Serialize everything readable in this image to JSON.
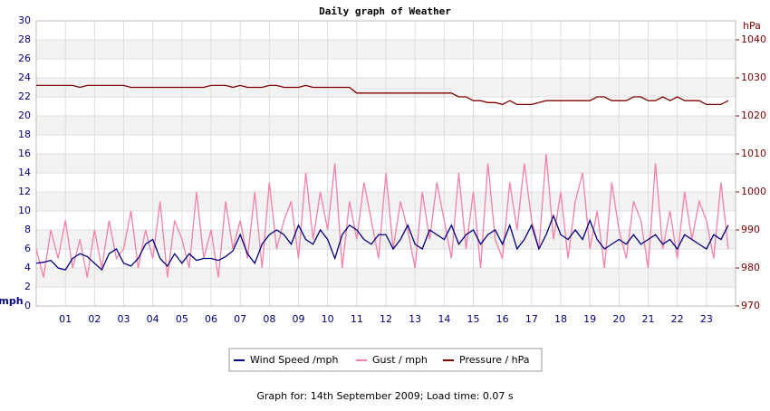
{
  "chart_data": {
    "type": "line",
    "title": "Daily graph of Weather",
    "y_label": "mph",
    "y2_label": "hPa",
    "footer": "Graph for: 14th September 2009; Load time: 0.07 s",
    "x": [
      0,
      0.25,
      0.5,
      0.75,
      1,
      1.25,
      1.5,
      1.75,
      2,
      2.25,
      2.5,
      2.75,
      3,
      3.25,
      3.5,
      3.75,
      4,
      4.25,
      4.5,
      4.75,
      5,
      5.25,
      5.5,
      5.75,
      6,
      6.25,
      6.5,
      6.75,
      7,
      7.25,
      7.5,
      7.75,
      8,
      8.25,
      8.5,
      8.75,
      9,
      9.25,
      9.5,
      9.75,
      10,
      10.25,
      10.5,
      10.75,
      11,
      11.25,
      11.5,
      11.75,
      12,
      12.25,
      12.5,
      12.75,
      13,
      13.25,
      13.5,
      13.75,
      14,
      14.25,
      14.5,
      14.75,
      15,
      15.25,
      15.5,
      15.75,
      16,
      16.25,
      16.5,
      16.75,
      17,
      17.25,
      17.5,
      17.75,
      18,
      18.25,
      18.5,
      18.75,
      19,
      19.25,
      19.5,
      19.75,
      20,
      20.25,
      20.5,
      20.75,
      21,
      21.25,
      21.5,
      21.75,
      22,
      22.25,
      22.5,
      22.75,
      23,
      23.25,
      23.5,
      23.75
    ],
    "series": [
      {
        "name": "Wind Speed /mph",
        "color": "#000080",
        "values": [
          4.5,
          4.6,
          4.8,
          4.0,
          3.8,
          5.0,
          5.5,
          5.2,
          4.5,
          3.8,
          5.5,
          6.0,
          4.5,
          4.2,
          5.0,
          6.5,
          7.0,
          5.0,
          4.2,
          5.5,
          4.5,
          5.5,
          4.8,
          5.0,
          5.0,
          4.8,
          5.2,
          5.8,
          7.5,
          5.5,
          4.5,
          6.5,
          7.5,
          8.0,
          7.5,
          6.5,
          8.5,
          7.0,
          6.5,
          8.0,
          7.0,
          5.0,
          7.5,
          8.5,
          8.0,
          7.0,
          6.5,
          7.5,
          7.5,
          6.0,
          7.0,
          8.5,
          6.5,
          6.0,
          8.0,
          7.5,
          7.0,
          8.5,
          6.5,
          7.5,
          8.0,
          6.5,
          7.5,
          8.0,
          6.5,
          8.5,
          6.0,
          7.0,
          8.5,
          6.0,
          7.5,
          9.5,
          7.5,
          7.0,
          8.0,
          7.0,
          9.0,
          7.0,
          6.0,
          6.5,
          7.0,
          6.5,
          7.5,
          6.5,
          7.0,
          7.5,
          6.5,
          7.0,
          6.0,
          7.5,
          7.0,
          6.5,
          6.0,
          7.5,
          7.0,
          8.5
        ]
      },
      {
        "name": "Gust / mph",
        "color": "#f77fa8",
        "values": [
          6,
          3,
          8,
          5,
          9,
          4,
          7,
          3,
          8,
          4,
          9,
          5,
          6,
          10,
          4,
          8,
          5,
          11,
          3,
          9,
          7,
          4,
          12,
          5,
          8,
          3,
          11,
          6,
          9,
          5,
          12,
          4,
          13,
          6,
          9,
          11,
          5,
          14,
          7,
          12,
          8,
          15,
          4,
          11,
          7,
          13,
          9,
          5,
          14,
          6,
          11,
          8,
          4,
          12,
          7,
          13,
          9,
          5,
          14,
          6,
          12,
          4,
          15,
          7,
          5,
          13,
          8,
          15,
          9,
          6,
          16,
          7,
          12,
          5,
          11,
          14,
          6,
          10,
          4,
          13,
          8,
          5,
          11,
          9,
          4,
          15,
          6,
          10,
          5,
          12,
          7,
          11,
          9,
          5,
          13,
          6
        ]
      },
      {
        "name": "Pressure / hPa",
        "color": "#800000",
        "axis": "y2",
        "values": [
          1028,
          1028,
          1028,
          1028,
          1028,
          1028,
          1027.5,
          1028,
          1028,
          1028,
          1028,
          1028,
          1028,
          1027.5,
          1027.5,
          1027.5,
          1027.5,
          1027.5,
          1027.5,
          1027.5,
          1027.5,
          1027.5,
          1027.5,
          1027.5,
          1028,
          1028,
          1028,
          1027.5,
          1028,
          1027.5,
          1027.5,
          1027.5,
          1028,
          1028,
          1027.5,
          1027.5,
          1027.5,
          1028,
          1027.5,
          1027.5,
          1027.5,
          1027.5,
          1027.5,
          1027.5,
          1026,
          1026,
          1026,
          1026,
          1026,
          1026,
          1026,
          1026,
          1026,
          1026,
          1026,
          1026,
          1026,
          1026,
          1025,
          1025,
          1024,
          1024,
          1023.5,
          1023.5,
          1023,
          1024,
          1023,
          1023,
          1023,
          1023.5,
          1024,
          1024,
          1024,
          1024,
          1024,
          1024,
          1024,
          1025,
          1025,
          1024,
          1024,
          1024,
          1025,
          1025,
          1024,
          1024,
          1025,
          1024,
          1025,
          1024,
          1024,
          1024,
          1023,
          1023,
          1023,
          1024
        ]
      }
    ],
    "xlim": [
      0,
      24
    ],
    "xticks": [
      {
        "value": 1,
        "label": "01"
      },
      {
        "value": 2,
        "label": "02"
      },
      {
        "value": 3,
        "label": "03"
      },
      {
        "value": 4,
        "label": "04"
      },
      {
        "value": 5,
        "label": "05"
      },
      {
        "value": 6,
        "label": "06"
      },
      {
        "value": 7,
        "label": "07"
      },
      {
        "value": 8,
        "label": "08"
      },
      {
        "value": 9,
        "label": "09"
      },
      10,
      11,
      12,
      13,
      14,
      15,
      16,
      17,
      18,
      19,
      20,
      21,
      22,
      23
    ],
    "ylim": [
      0,
      30
    ],
    "yticks": [
      0,
      2,
      4,
      6,
      8,
      10,
      12,
      14,
      16,
      18,
      20,
      22,
      24,
      26,
      28,
      30
    ],
    "y2lim": [
      970,
      1045
    ],
    "y2ticks": [
      970,
      980,
      990,
      1000,
      1010,
      1020,
      1030,
      1040
    ],
    "grid": true
  }
}
